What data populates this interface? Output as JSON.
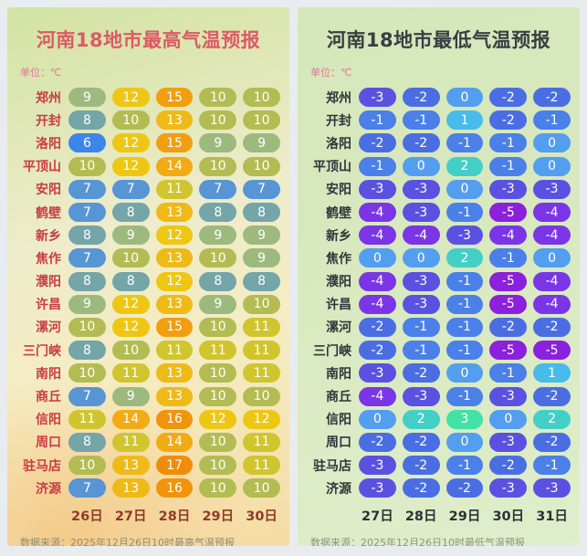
{
  "chart_data": [
    {
      "type": "heatmap",
      "title": "河南18地市最高气温预报",
      "unit_label": "单位：℃",
      "columns": [
        "26日",
        "27日",
        "28日",
        "29日",
        "30日"
      ],
      "source": "数据来源：2025年12月26日10时最高气温预报",
      "series": [
        {
          "city": "郑州",
          "values": [
            9,
            12,
            15,
            10,
            10
          ]
        },
        {
          "city": "开封",
          "values": [
            8,
            10,
            13,
            10,
            10
          ]
        },
        {
          "city": "洛阳",
          "values": [
            6,
            12,
            15,
            9,
            9
          ]
        },
        {
          "city": "平顶山",
          "values": [
            10,
            12,
            14,
            10,
            10
          ]
        },
        {
          "city": "安阳",
          "values": [
            7,
            7,
            11,
            7,
            7
          ]
        },
        {
          "city": "鹤壁",
          "values": [
            7,
            8,
            13,
            8,
            8
          ]
        },
        {
          "city": "新乡",
          "values": [
            8,
            9,
            12,
            9,
            9
          ]
        },
        {
          "city": "焦作",
          "values": [
            7,
            10,
            13,
            10,
            9
          ]
        },
        {
          "city": "濮阳",
          "values": [
            8,
            8,
            12,
            8,
            8
          ]
        },
        {
          "city": "许昌",
          "values": [
            9,
            12,
            13,
            9,
            10
          ]
        },
        {
          "city": "漯河",
          "values": [
            10,
            12,
            15,
            10,
            11
          ]
        },
        {
          "city": "三门峡",
          "values": [
            8,
            10,
            11,
            11,
            11
          ]
        },
        {
          "city": "南阳",
          "values": [
            10,
            11,
            13,
            10,
            11
          ]
        },
        {
          "city": "商丘",
          "values": [
            7,
            9,
            13,
            10,
            10
          ]
        },
        {
          "city": "信阳",
          "values": [
            11,
            14,
            16,
            12,
            12
          ]
        },
        {
          "city": "周口",
          "values": [
            8,
            11,
            14,
            10,
            11
          ]
        },
        {
          "city": "驻马店",
          "values": [
            10,
            13,
            17,
            10,
            11
          ]
        },
        {
          "city": "济源",
          "values": [
            7,
            13,
            16,
            10,
            10
          ]
        }
      ],
      "value_colors": {
        "6": "#3b86e8",
        "7": "#5795d5",
        "8": "#73a5a9",
        "9": "#9cba7e",
        "10": "#b2bc52",
        "11": "#d0c52e",
        "12": "#eec714",
        "13": "#efba18",
        "14": "#f2ab14",
        "15": "#f19e10",
        "16": "#f0940c",
        "17": "#ef8e06"
      },
      "style": {
        "title_color": "#dc5a66",
        "unit_color": "#e4739e",
        "city_color": "#c83c44",
        "date_color": "#8e3b2b",
        "source_color": "#8e8c74"
      }
    },
    {
      "type": "heatmap",
      "title": "河南18地市最低气温预报",
      "unit_label": "单位：℃",
      "columns": [
        "27日",
        "28日",
        "29日",
        "30日",
        "31日"
      ],
      "source": "数据来源：2025年12月26日10时最低气温预报",
      "series": [
        {
          "city": "郑州",
          "values": [
            -3,
            -2,
            0,
            -2,
            -2
          ]
        },
        {
          "city": "开封",
          "values": [
            -1,
            -1,
            1,
            -2,
            -1
          ]
        },
        {
          "city": "洛阳",
          "values": [
            -2,
            -2,
            -1,
            -1,
            0
          ]
        },
        {
          "city": "平顶山",
          "values": [
            -1,
            0,
            2,
            -1,
            0
          ]
        },
        {
          "city": "安阳",
          "values": [
            -3,
            -3,
            0,
            -3,
            -3
          ]
        },
        {
          "city": "鹤壁",
          "values": [
            -4,
            -3,
            -1,
            -5,
            -4
          ]
        },
        {
          "city": "新乡",
          "values": [
            -4,
            -4,
            -3,
            -4,
            -4
          ]
        },
        {
          "city": "焦作",
          "values": [
            0,
            0,
            2,
            -1,
            0
          ]
        },
        {
          "city": "濮阳",
          "values": [
            -4,
            -3,
            -1,
            -5,
            -4
          ]
        },
        {
          "city": "许昌",
          "values": [
            -4,
            -3,
            -1,
            -5,
            -4
          ]
        },
        {
          "city": "漯河",
          "values": [
            -2,
            -1,
            -1,
            -2,
            -2
          ]
        },
        {
          "city": "三门峡",
          "values": [
            -2,
            -1,
            -1,
            -5,
            -5
          ]
        },
        {
          "city": "南阳",
          "values": [
            -3,
            -2,
            0,
            -1,
            1
          ]
        },
        {
          "city": "商丘",
          "values": [
            -4,
            -3,
            -1,
            -3,
            -2
          ]
        },
        {
          "city": "信阳",
          "values": [
            0,
            2,
            3,
            0,
            2
          ]
        },
        {
          "city": "周口",
          "values": [
            -2,
            -2,
            0,
            -3,
            -2
          ]
        },
        {
          "city": "驻马店",
          "values": [
            -3,
            -2,
            -1,
            -2,
            -1
          ]
        },
        {
          "city": "济源",
          "values": [
            -3,
            -2,
            -2,
            -3,
            -3
          ]
        }
      ],
      "value_colors": {
        "3": "#42e2a4",
        "2": "#44cfc6",
        "1": "#47bbe9",
        "0": "#549ef0",
        "-1": "#4a80e8",
        "-2": "#4a6ee2",
        "-3": "#5b51e1",
        "-4": "#7a36e6",
        "-5": "#8b20dd"
      },
      "style": {
        "title_color": "#3a3e42",
        "unit_color": "#e4739e",
        "city_color": "#30353a",
        "date_color": "#2d3134",
        "source_color": "#8b9480"
      }
    }
  ]
}
